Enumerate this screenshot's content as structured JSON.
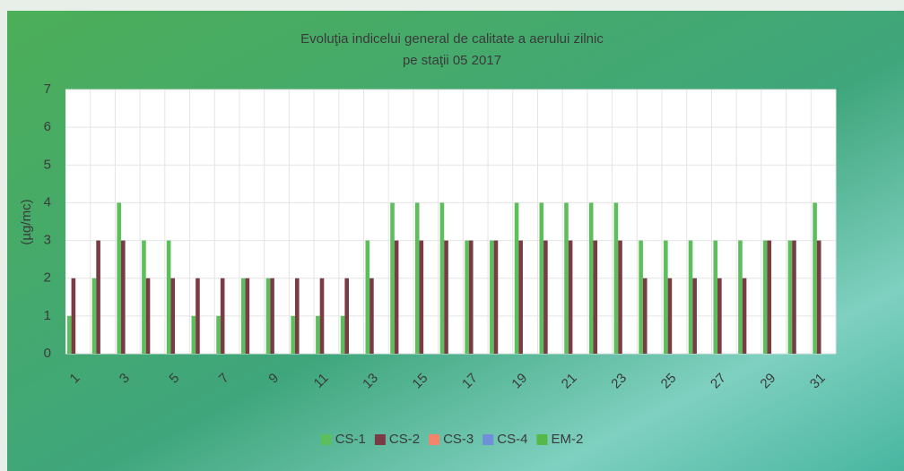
{
  "chart_data": {
    "type": "bar",
    "title": "Evoluţia indicelui general de calitate a aerului zilnic",
    "subtitle": "pe staţii 05 2017",
    "y_label": "(µg/mc)",
    "categories": [
      "1",
      null,
      "3",
      null,
      "5",
      null,
      "7",
      null,
      "9",
      null,
      "11",
      null,
      "13",
      null,
      "15",
      null,
      "17",
      null,
      "19",
      null,
      "21",
      null,
      "23",
      null,
      "25",
      null,
      "27",
      null,
      "29",
      null,
      "31"
    ],
    "series": [
      {
        "name": "CS-1",
        "color": "#5cbf5c",
        "values": [
          1,
          2,
          4,
          3,
          3,
          1,
          1,
          2,
          2,
          1,
          1,
          1,
          3,
          4,
          4,
          4,
          3,
          3,
          4,
          4,
          4,
          4,
          4,
          3,
          3,
          3,
          3,
          3,
          3,
          3,
          4
        ]
      },
      {
        "name": "CS-2",
        "color": "#7a3b45",
        "values": [
          2,
          3,
          3,
          2,
          2,
          2,
          2,
          2,
          2,
          2,
          2,
          2,
          2,
          3,
          3,
          3,
          3,
          3,
          3,
          3,
          3,
          3,
          3,
          2,
          2,
          2,
          2,
          2,
          3,
          3,
          3
        ]
      },
      {
        "name": "CS-3",
        "color": "#f4846c",
        "values": [
          null,
          null,
          null,
          null,
          null,
          null,
          null,
          null,
          null,
          null,
          null,
          null,
          null,
          null,
          null,
          null,
          null,
          null,
          null,
          null,
          null,
          null,
          null,
          null,
          null,
          null,
          null,
          null,
          null,
          null,
          null
        ]
      },
      {
        "name": "CS-4",
        "color": "#6f8fd8",
        "values": [
          null,
          null,
          null,
          null,
          null,
          null,
          null,
          null,
          null,
          null,
          null,
          null,
          null,
          null,
          null,
          null,
          null,
          null,
          null,
          null,
          null,
          null,
          null,
          null,
          null,
          null,
          null,
          null,
          null,
          null,
          null
        ]
      },
      {
        "name": "EM-2",
        "color": "#55b848",
        "values": [
          null,
          null,
          null,
          null,
          null,
          null,
          null,
          null,
          null,
          null,
          null,
          null,
          null,
          null,
          null,
          null,
          null,
          null,
          null,
          null,
          null,
          null,
          null,
          null,
          null,
          null,
          null,
          null,
          null,
          null,
          null
        ]
      }
    ],
    "ylim": [
      0,
      7
    ],
    "yticks": [
      0,
      1,
      2,
      3,
      4,
      5,
      6,
      7
    ],
    "grid": true,
    "legend": "bottom"
  }
}
